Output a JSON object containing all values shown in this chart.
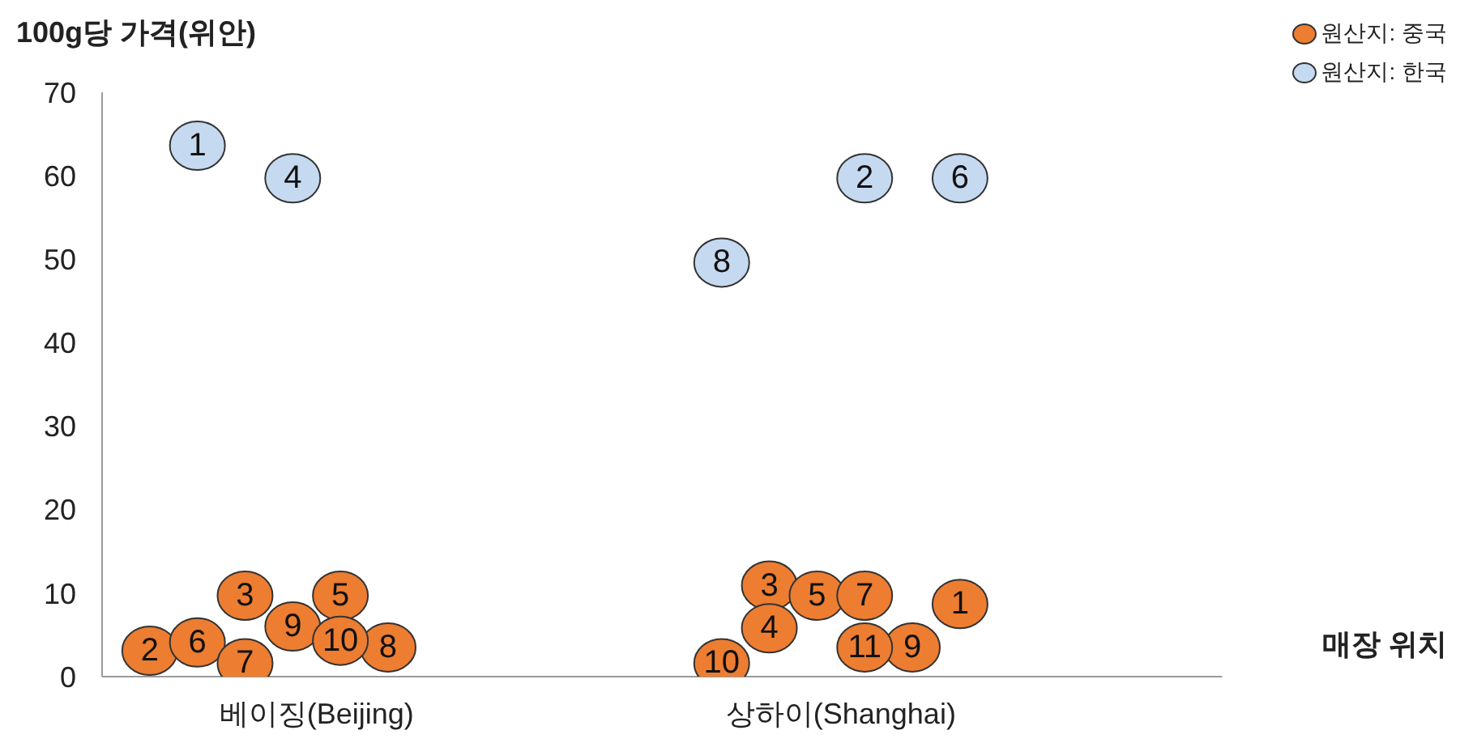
{
  "chart_data": {
    "type": "scatter",
    "ylabel": "100g당 가격(위안)",
    "xlabel": "매장 위치",
    "categories": [
      null,
      null,
      null,
      null,
      null,
      null,
      null,
      null,
      null,
      "베이징(Beijing)",
      null,
      null,
      null,
      null,
      null,
      null,
      null,
      null,
      null,
      null,
      null,
      null,
      null,
      null,
      null,
      null,
      null,
      null,
      null,
      null,
      null,
      "상하이(Shanghai)",
      null,
      null,
      null,
      null,
      null,
      null,
      null,
      null,
      null,
      null,
      null,
      null,
      null,
      null,
      null,
      null
    ],
    "ylim": [
      0,
      70
    ],
    "yticks": [
      0,
      10,
      20,
      30,
      40,
      50,
      60,
      70
    ],
    "grid": false,
    "legend": "top right",
    "marker": "circle",
    "series": [
      {
        "name": "원산지: 중국",
        "color": "#ed7d31",
        "values": [
          null,
          null,
          3.1,
          null,
          4.1,
          null,
          9.7,
          null,
          6,
          null,
          9.7,
          null,
          3.5,
          null,
          null,
          null,
          null,
          null,
          null,
          null,
          null,
          null,
          null,
          null,
          null,
          null,
          1.6,
          null,
          10.9,
          null,
          9.7,
          null,
          9.7,
          null,
          3.5,
          null,
          8.7,
          null,
          null,
          null,
          null,
          null,
          null,
          null,
          null,
          null,
          null,
          null
        ]
      },
      {
        "name": "원산지: 한국",
        "color": "#c5daf0",
        "values": [
          null,
          null,
          null,
          null,
          63.6,
          null,
          null,
          null,
          59.7,
          null,
          null,
          null,
          null,
          null,
          null,
          null,
          null,
          null,
          null,
          null,
          null,
          null,
          null,
          null,
          null,
          null,
          49.6,
          null,
          null,
          null,
          null,
          null,
          59.7,
          null,
          null,
          null,
          59.7,
          null,
          null,
          null,
          null,
          null,
          null,
          null,
          null,
          null,
          null,
          null
        ]
      },
      {
        "color": "#ed7d31",
        "values": [
          null,
          null,
          null,
          null,
          null,
          null,
          1.6,
          null,
          null,
          null,
          4.3,
          null,
          null,
          null,
          null,
          null,
          null,
          null,
          null,
          null,
          null,
          null,
          null,
          null,
          null,
          null,
          null,
          null,
          5.8,
          null,
          null,
          null,
          3.5,
          null,
          null,
          null,
          null,
          null,
          null,
          null,
          null,
          null,
          null,
          null,
          null,
          null,
          null,
          null
        ]
      }
    ],
    "annotations": [
      {
        "text": "2",
        "y": 3.1
      },
      {
        "text": "6",
        "y": 4.1
      },
      {
        "text": "3",
        "y": 9.7
      },
      {
        "text": "9",
        "y": 6
      },
      {
        "text": "5",
        "y": 9.7
      },
      {
        "text": "8",
        "y": 3.5
      },
      {
        "text": "10",
        "y": 1.6
      },
      {
        "text": "3",
        "y": 10.9
      },
      {
        "text": "5",
        "y": 9.7
      },
      {
        "text": "7",
        "y": 9.7
      },
      {
        "text": "9",
        "y": 3.5
      },
      {
        "text": "1",
        "y": 8.7
      },
      {
        "text": "1",
        "y": 63.6
      },
      {
        "text": "4",
        "y": 59.7
      },
      {
        "text": "8",
        "y": 49.6
      },
      {
        "text": "2",
        "y": 59.7
      },
      {
        "text": "6",
        "y": 59.7
      },
      {
        "text": "7",
        "y": 1.6
      },
      {
        "text": "10",
        "y": 4.3
      },
      {
        "text": "4",
        "y": 5.8
      },
      {
        "text": "11",
        "y": 3.5
      }
    ]
  }
}
